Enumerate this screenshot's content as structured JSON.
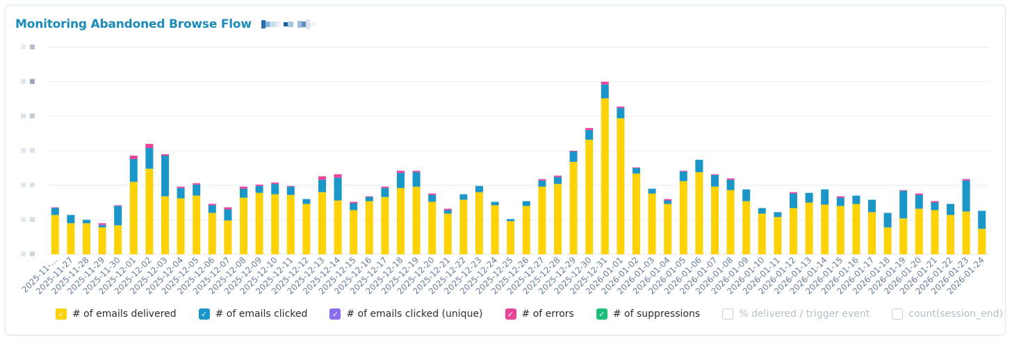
{
  "header": {
    "title": "Monitoring Abandoned Browse Flow"
  },
  "colors": {
    "title": "#1b8bb8",
    "delivered": "#fdd206",
    "clicked": "#1a96c9",
    "clicked_unique": "#8a6cf0",
    "errors": "#e9449a",
    "suppressions": "#1dbe7c",
    "gridline": "#e6eef2",
    "tick_label": "#6a7d98"
  },
  "legend": [
    {
      "label": "# of emails delivered",
      "color": "#fdd206",
      "checked": true,
      "icon": "checkbox-checked-icon"
    },
    {
      "label": "# of emails clicked",
      "color": "#1a96c9",
      "checked": true,
      "icon": "checkbox-checked-icon"
    },
    {
      "label": "# of emails clicked (unique)",
      "color": "#8a6cf0",
      "checked": true,
      "icon": "checkbox-checked-icon"
    },
    {
      "label": "# of errors",
      "color": "#e9449a",
      "checked": true,
      "icon": "checkbox-checked-icon"
    },
    {
      "label": "# of suppressions",
      "color": "#1dbe7c",
      "checked": true,
      "icon": "checkbox-checked-icon"
    },
    {
      "label": "% delivered / trigger event",
      "color": "#c9cfd5",
      "checked": false,
      "icon": "checkbox-empty-icon"
    },
    {
      "label": "count(session_end)",
      "color": "#c9cfd5",
      "checked": false,
      "icon": "checkbox-empty-icon"
    }
  ],
  "chart_data": {
    "type": "bar",
    "stacked": true,
    "title": "Monitoring Abandoned Browse Flow",
    "ylim": [
      0,
      6
    ],
    "y_ticks_note": "y-axis tick labels obscured",
    "grid": true,
    "legend_position": "bottom",
    "categories": [
      "2025-11-…",
      "2025-11-27",
      "2025-11-28",
      "2025-11-29",
      "2025-11-30",
      "2025-12-01",
      "2025-12-02",
      "2025-12-03",
      "2025-12-04",
      "2025-12-05",
      "2025-12-06",
      "2025-12-07",
      "2025-12-08",
      "2025-12-09",
      "2025-12-10",
      "2025-12-11",
      "2025-12-12",
      "2025-12-13",
      "2025-12-14",
      "2025-12-15",
      "2025-12-16",
      "2025-12-17",
      "2025-12-18",
      "2025-12-19",
      "2025-12-20",
      "2025-12-21",
      "2025-12-22",
      "2025-12-23",
      "2025-12-24",
      "2025-12-25",
      "2025-12-26",
      "2025-12-27",
      "2025-12-28",
      "2025-12-29",
      "2025-12-30",
      "2025-12-31",
      "2026-01-01",
      "2026-01-02",
      "2026-01-03",
      "2026-01-04",
      "2026-01-05",
      "2026-01-06",
      "2026-01-07",
      "2026-01-08",
      "2026-01-09",
      "2026-01-10",
      "2026-01-11",
      "2026-01-12",
      "2026-01-13",
      "2026-01-14",
      "2026-01-15",
      "2026-01-16",
      "2026-01-17",
      "2026-01-18",
      "2026-01-19",
      "2026-01-20",
      "2026-01-21",
      "2026-01-22",
      "2026-01-23",
      "2026-01-24"
    ],
    "series": [
      {
        "name": "# of emails delivered",
        "color": "#fdd206",
        "values": [
          1.14,
          0.9,
          0.9,
          0.78,
          0.84,
          2.1,
          2.48,
          1.68,
          1.62,
          1.7,
          1.2,
          0.98,
          1.64,
          1.78,
          1.74,
          1.72,
          1.46,
          1.8,
          1.56,
          1.28,
          1.54,
          1.66,
          1.92,
          1.96,
          1.52,
          1.18,
          1.58,
          1.8,
          1.42,
          0.96,
          1.4,
          1.96,
          2.04,
          2.68,
          3.32,
          4.52,
          3.94,
          2.34,
          1.76,
          1.46,
          2.12,
          2.38,
          1.96,
          1.86,
          1.54,
          1.18,
          1.08,
          1.34,
          1.5,
          1.44,
          1.4,
          1.46,
          1.22,
          0.78,
          1.04,
          1.32,
          1.28,
          1.14,
          1.24,
          0.74
        ]
      },
      {
        "name": "# of emails clicked",
        "color": "#1a96c9",
        "values": [
          0.2,
          0.24,
          0.1,
          0.06,
          0.56,
          0.66,
          0.6,
          1.18,
          0.3,
          0.32,
          0.22,
          0.32,
          0.26,
          0.2,
          0.3,
          0.24,
          0.14,
          0.36,
          0.66,
          0.2,
          0.12,
          0.26,
          0.44,
          0.42,
          0.2,
          0.1,
          0.16,
          0.18,
          0.1,
          0.06,
          0.14,
          0.18,
          0.2,
          0.3,
          0.28,
          0.4,
          0.3,
          0.16,
          0.14,
          0.1,
          0.28,
          0.36,
          0.34,
          0.3,
          0.34,
          0.16,
          0.14,
          0.42,
          0.28,
          0.44,
          0.24,
          0.24,
          0.36,
          0.42,
          0.8,
          0.4,
          0.22,
          0.32,
          0.9,
          0.52
        ]
      },
      {
        "name": "# of emails clicked (unique)",
        "color": "#8a6cf0",
        "values": [
          0,
          0,
          0,
          0.02,
          0,
          0,
          0,
          0,
          0,
          0,
          0,
          0,
          0,
          0,
          0,
          0,
          0,
          0,
          0,
          0,
          0,
          0,
          0,
          0,
          0,
          0,
          0,
          0,
          0,
          0,
          0,
          0,
          0,
          0,
          0,
          0,
          0,
          0,
          0,
          0,
          0,
          0,
          0,
          0,
          0,
          0,
          0,
          0,
          0,
          0,
          0,
          0,
          0,
          0,
          0,
          0,
          0,
          0,
          0,
          0
        ]
      },
      {
        "name": "# of errors",
        "color": "#e9449a",
        "values": [
          0.02,
          0,
          0,
          0.04,
          0.02,
          0.1,
          0.12,
          0.04,
          0.04,
          0.04,
          0.04,
          0.06,
          0.06,
          0.04,
          0.04,
          0.02,
          0,
          0.1,
          0.1,
          0.04,
          0.02,
          0.04,
          0.06,
          0.04,
          0.04,
          0.04,
          0,
          0,
          0,
          0,
          0,
          0.04,
          0.04,
          0.02,
          0.06,
          0.08,
          0.04,
          0.02,
          0,
          0.04,
          0.02,
          0,
          0.02,
          0.04,
          0,
          0,
          0,
          0.04,
          0,
          0,
          0.04,
          0,
          0,
          0,
          0.02,
          0.04,
          0.04,
          0,
          0.04,
          0
        ]
      },
      {
        "name": "# of suppressions",
        "color": "#1dbe7c",
        "values": [
          0,
          0,
          0,
          0,
          0,
          0,
          0,
          0,
          0,
          0,
          0,
          0,
          0,
          0,
          0,
          0,
          0,
          0,
          0,
          0,
          0,
          0,
          0,
          0,
          0,
          0,
          0,
          0,
          0,
          0,
          0,
          0,
          0,
          0,
          0,
          0,
          0,
          0,
          0,
          0,
          0,
          0,
          0,
          0,
          0,
          0,
          0,
          0,
          0,
          0,
          0,
          0,
          0,
          0,
          0,
          0,
          0,
          0,
          0,
          0
        ]
      }
    ]
  }
}
